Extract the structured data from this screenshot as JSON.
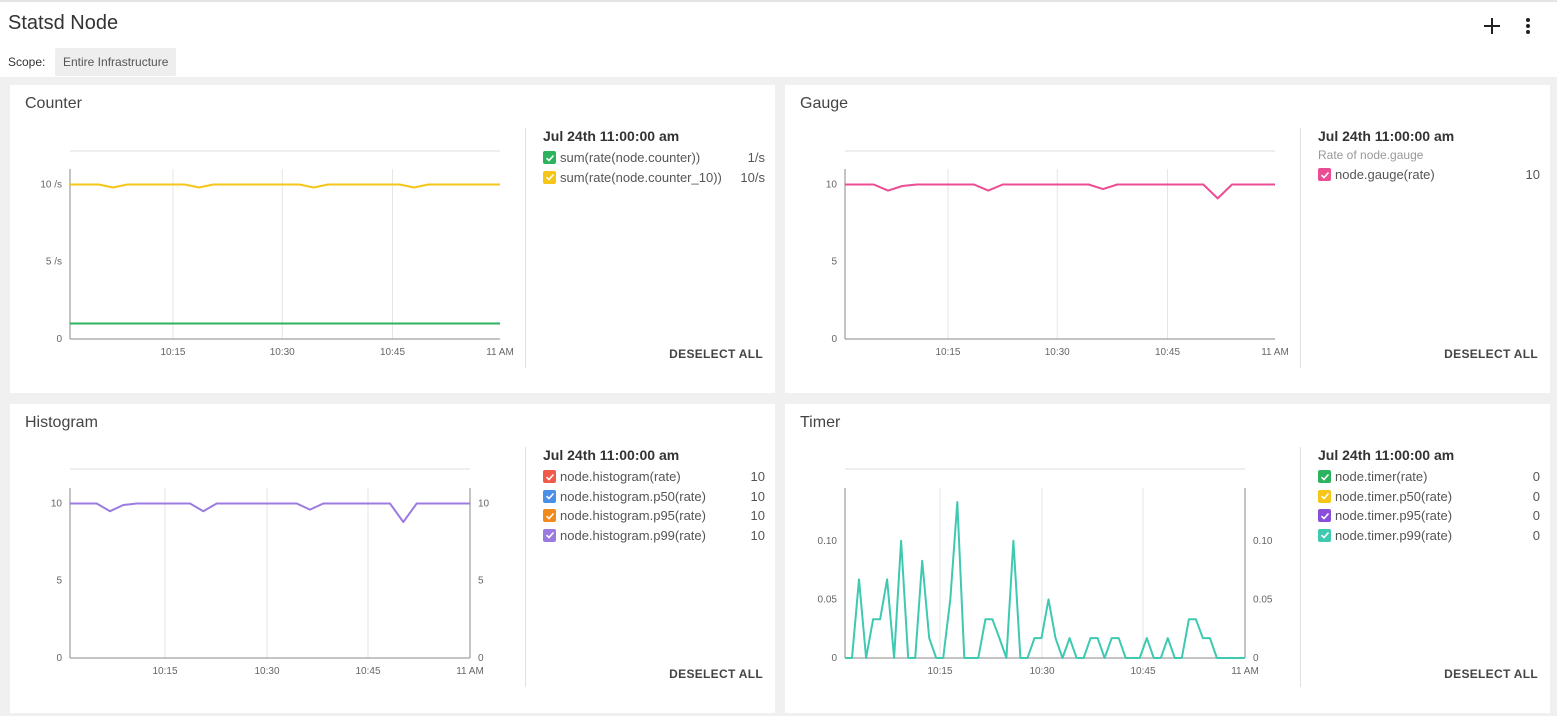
{
  "header": {
    "title": "Statsd Node",
    "scope_label": "Scope:",
    "scope_value": "Entire Infrastructure",
    "add_icon": "plus-icon",
    "menu_icon": "vertical-dots-icon"
  },
  "panels": [
    {
      "title": "Counter",
      "legend_time": "Jul 24th 11:00:00 am",
      "legend_subtitle": "",
      "legend_items": [
        {
          "name": "sum(rate(node.counter))",
          "value": "1/s",
          "color": "#2db35d"
        },
        {
          "name": "sum(rate(node.counter_10))",
          "value": "10/s",
          "color": "#f5c518"
        }
      ],
      "deselect_label": "DESELECT ALL"
    },
    {
      "title": "Gauge",
      "legend_time": "Jul 24th 11:00:00 am",
      "legend_subtitle": "Rate of node.gauge",
      "legend_items": [
        {
          "name": "node.gauge(rate)",
          "value": "10",
          "color": "#ec4c94"
        }
      ],
      "deselect_label": "DESELECT ALL"
    },
    {
      "title": "Histogram",
      "legend_time": "Jul 24th 11:00:00 am",
      "legend_subtitle": "",
      "legend_items": [
        {
          "name": "node.histogram(rate)",
          "value": "10",
          "color": "#f05a48"
        },
        {
          "name": "node.histogram.p50(rate)",
          "value": "10",
          "color": "#4a8fe8"
        },
        {
          "name": "node.histogram.p95(rate)",
          "value": "10",
          "color": "#f08a1c"
        },
        {
          "name": "node.histogram.p99(rate)",
          "value": "10",
          "color": "#9b7be0"
        }
      ],
      "deselect_label": "DESELECT ALL"
    },
    {
      "title": "Timer",
      "legend_time": "Jul 24th 11:00:00 am",
      "legend_subtitle": "",
      "legend_items": [
        {
          "name": "node.timer(rate)",
          "value": "0",
          "color": "#2db35d"
        },
        {
          "name": "node.timer.p50(rate)",
          "value": "0",
          "color": "#f5c518"
        },
        {
          "name": "node.timer.p95(rate)",
          "value": "0",
          "color": "#8a4fd8"
        },
        {
          "name": "node.timer.p99(rate)",
          "value": "0",
          "color": "#3ec9b0"
        }
      ],
      "deselect_label": "DESELECT ALL"
    }
  ],
  "chart_data": [
    {
      "type": "line",
      "title": "Counter",
      "x": [
        "10:00",
        "10:02",
        "10:04",
        "10:06",
        "10:08",
        "10:10",
        "10:12",
        "10:14",
        "10:16",
        "10:18",
        "10:20",
        "10:22",
        "10:24",
        "10:26",
        "10:28",
        "10:30",
        "10:32",
        "10:34",
        "10:36",
        "10:38",
        "10:40",
        "10:42",
        "10:44",
        "10:46",
        "10:48",
        "10:50",
        "10:52",
        "10:54",
        "10:56",
        "10:58",
        "11:00"
      ],
      "x_ticks": [
        "10:15",
        "10:30",
        "10:45",
        "11 AM"
      ],
      "y_ticks": [
        "0",
        "5 /s",
        "10 /s"
      ],
      "ylim": [
        0,
        11
      ],
      "series": [
        {
          "name": "sum(rate(node.counter_10))",
          "color": "#f5c518",
          "values": [
            10,
            10,
            10,
            9.8,
            10,
            10,
            10,
            10,
            10,
            9.8,
            10,
            10,
            10,
            10,
            10,
            10,
            10,
            9.8,
            10,
            10,
            10,
            10,
            10,
            10,
            9.8,
            10,
            10,
            10,
            10,
            10,
            10
          ]
        },
        {
          "name": "sum(rate(node.counter))",
          "color": "#2db35d",
          "values": [
            1,
            1,
            1,
            1,
            1,
            1,
            1,
            1,
            1,
            1,
            1,
            1,
            1,
            1,
            1,
            1,
            1,
            1,
            1,
            1,
            1,
            1,
            1,
            1,
            1,
            1,
            1,
            1,
            1,
            1,
            1
          ]
        }
      ]
    },
    {
      "type": "line",
      "title": "Gauge",
      "x": [
        "10:00",
        "10:02",
        "10:04",
        "10:06",
        "10:08",
        "10:10",
        "10:12",
        "10:14",
        "10:16",
        "10:18",
        "10:20",
        "10:22",
        "10:24",
        "10:26",
        "10:28",
        "10:30",
        "10:32",
        "10:34",
        "10:36",
        "10:38",
        "10:40",
        "10:42",
        "10:44",
        "10:46",
        "10:48",
        "10:50",
        "10:52",
        "10:54",
        "10:56",
        "10:58",
        "11:00"
      ],
      "x_ticks": [
        "10:15",
        "10:30",
        "10:45",
        "11 AM"
      ],
      "y_ticks": [
        "0",
        "5",
        "10"
      ],
      "ylim": [
        0,
        11
      ],
      "series": [
        {
          "name": "node.gauge(rate)",
          "color": "#ec4c94",
          "values": [
            10,
            10,
            10,
            9.6,
            9.9,
            10,
            10,
            10,
            10,
            10,
            9.6,
            10,
            10,
            10,
            10,
            10,
            10,
            10,
            9.7,
            10,
            10,
            10,
            10,
            10,
            10,
            10,
            9.1,
            10,
            10,
            10,
            10
          ]
        }
      ]
    },
    {
      "type": "line",
      "title": "Histogram",
      "x": [
        "10:00",
        "10:02",
        "10:04",
        "10:06",
        "10:08",
        "10:10",
        "10:12",
        "10:14",
        "10:16",
        "10:18",
        "10:20",
        "10:22",
        "10:24",
        "10:26",
        "10:28",
        "10:30",
        "10:32",
        "10:34",
        "10:36",
        "10:38",
        "10:40",
        "10:42",
        "10:44",
        "10:46",
        "10:48",
        "10:50",
        "10:52",
        "10:54",
        "10:56",
        "10:58",
        "11:00"
      ],
      "x_ticks": [
        "10:15",
        "10:30",
        "10:45",
        "11 AM"
      ],
      "y_ticks": [
        "0",
        "5",
        "10"
      ],
      "ylim": [
        0,
        11
      ],
      "series": [
        {
          "name": "node.histogram.p99(rate)",
          "color": "#9b7be0",
          "values": [
            10,
            10,
            10,
            9.5,
            9.9,
            10,
            10,
            10,
            10,
            10,
            9.5,
            10,
            10,
            10,
            10,
            10,
            10,
            10,
            9.6,
            10,
            10,
            10,
            10,
            10,
            10,
            8.8,
            10,
            10,
            10,
            10,
            10
          ]
        }
      ]
    },
    {
      "type": "line",
      "title": "Timer",
      "x_ticks": [
        "10:15",
        "10:30",
        "10:45",
        "11 AM"
      ],
      "y_ticks": [
        "0",
        "0.05",
        "0.10"
      ],
      "ylim": [
        0,
        0.145
      ],
      "series": [
        {
          "name": "node.timer.p99(rate)",
          "color": "#3ec9b0",
          "values": [
            0,
            0,
            0.067,
            0,
            0.033,
            0.033,
            0.067,
            0,
            0.1,
            0,
            0,
            0.083,
            0.017,
            0,
            0,
            0.05,
            0.133,
            0,
            0,
            0,
            0.033,
            0.033,
            0.017,
            0,
            0.1,
            0,
            0,
            0.017,
            0.017,
            0.05,
            0.017,
            0,
            0.017,
            0,
            0,
            0.017,
            0.017,
            0,
            0.017,
            0.017,
            0,
            0,
            0,
            0.017,
            0,
            0,
            0.017,
            0,
            0,
            0.033,
            0.033,
            0.017,
            0.017,
            0,
            0,
            0,
            0,
            0
          ]
        }
      ]
    }
  ]
}
